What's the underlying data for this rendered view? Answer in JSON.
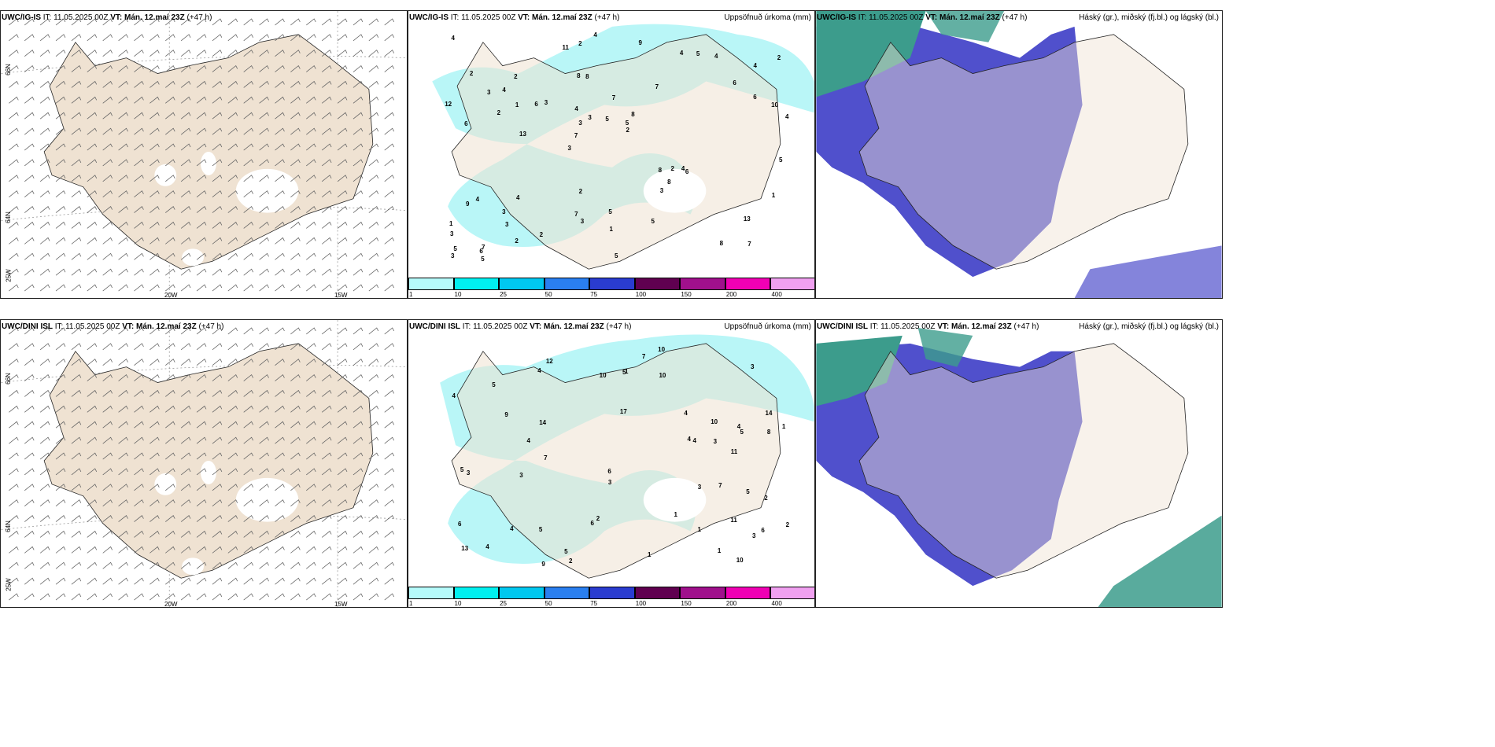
{
  "rows": [
    {
      "model": "UWC/IG-IS",
      "it_label": "IT: 11.05.2025 00Z",
      "vt_label": "VT: Mán. 12.maí 23Z",
      "lead": "(+47 h)"
    },
    {
      "model": "UWC/DINI ISL",
      "it_label": "IT: 11.05.2025 00Z",
      "vt_label": "VT: Mán. 12.maí 23Z",
      "lead": "(+47 h)"
    }
  ],
  "panel_titles": {
    "precip": "Uppsöfnuð úrkoma (mm)",
    "cloud": "Háský (gr.), miðský (fj.bl.) og lágský (bl.)"
  },
  "axis_ticks": {
    "lat_66": "66N",
    "lat_64": "64N",
    "lon_25": "25W",
    "lon_20": "20W",
    "lon_15": "15W"
  },
  "legend": {
    "labels": [
      "1",
      "10",
      "25",
      "50",
      "75",
      "100",
      "150",
      "200",
      "400"
    ],
    "colors": [
      "#b6fbfb",
      "#00f0f0",
      "#00c8f0",
      "#2a7ff0",
      "#2a3cd0",
      "#600050",
      "#a0108c",
      "#f000b4",
      "#f0a0f0"
    ]
  },
  "colors": {
    "land": "#efe2d2",
    "snow": "#ffffff",
    "precip_light": "#b9f6f7",
    "cloud_high": "#3c9c8c",
    "cloud_mid": "#5050cc",
    "cloud_low": "#d2e8f0"
  },
  "precip_numbers_top": [
    "7",
    "6",
    "4",
    "3",
    "7",
    "7",
    "8",
    "7",
    "4",
    "3",
    "3",
    "3",
    "8",
    "8",
    "6",
    "2",
    "2",
    "4",
    "8",
    "6",
    "7",
    "7",
    "3",
    "2",
    "4",
    "4",
    "8",
    "13",
    "4",
    "5",
    "6",
    "2",
    "3",
    "2",
    "10",
    "5",
    "5",
    "3",
    "2",
    "9",
    "6",
    "2",
    "8",
    "5",
    "3",
    "5",
    "3",
    "5",
    "4",
    "4",
    "13",
    "12",
    "4",
    "5",
    "6",
    "9",
    "11",
    "3",
    "1",
    "2",
    "2",
    "2",
    "1",
    "1",
    "4",
    "3",
    "5",
    "4",
    "1",
    "5"
  ],
  "precip_numbers_bottom": [
    "11",
    "14",
    "6",
    "17",
    "13",
    "12",
    "4",
    "5",
    "3",
    "9",
    "8",
    "4",
    "11",
    "2",
    "6",
    "5",
    "3",
    "4",
    "2",
    "5",
    "5",
    "3",
    "1",
    "4",
    "5",
    "6",
    "7",
    "10",
    "4",
    "2",
    "3",
    "1",
    "9",
    "6",
    "5",
    "1",
    "4",
    "10",
    "10",
    "7",
    "7",
    "3",
    "5",
    "4",
    "2",
    "3",
    "4",
    "10",
    "14",
    "10",
    "4",
    "3",
    "1",
    "1",
    "1"
  ]
}
